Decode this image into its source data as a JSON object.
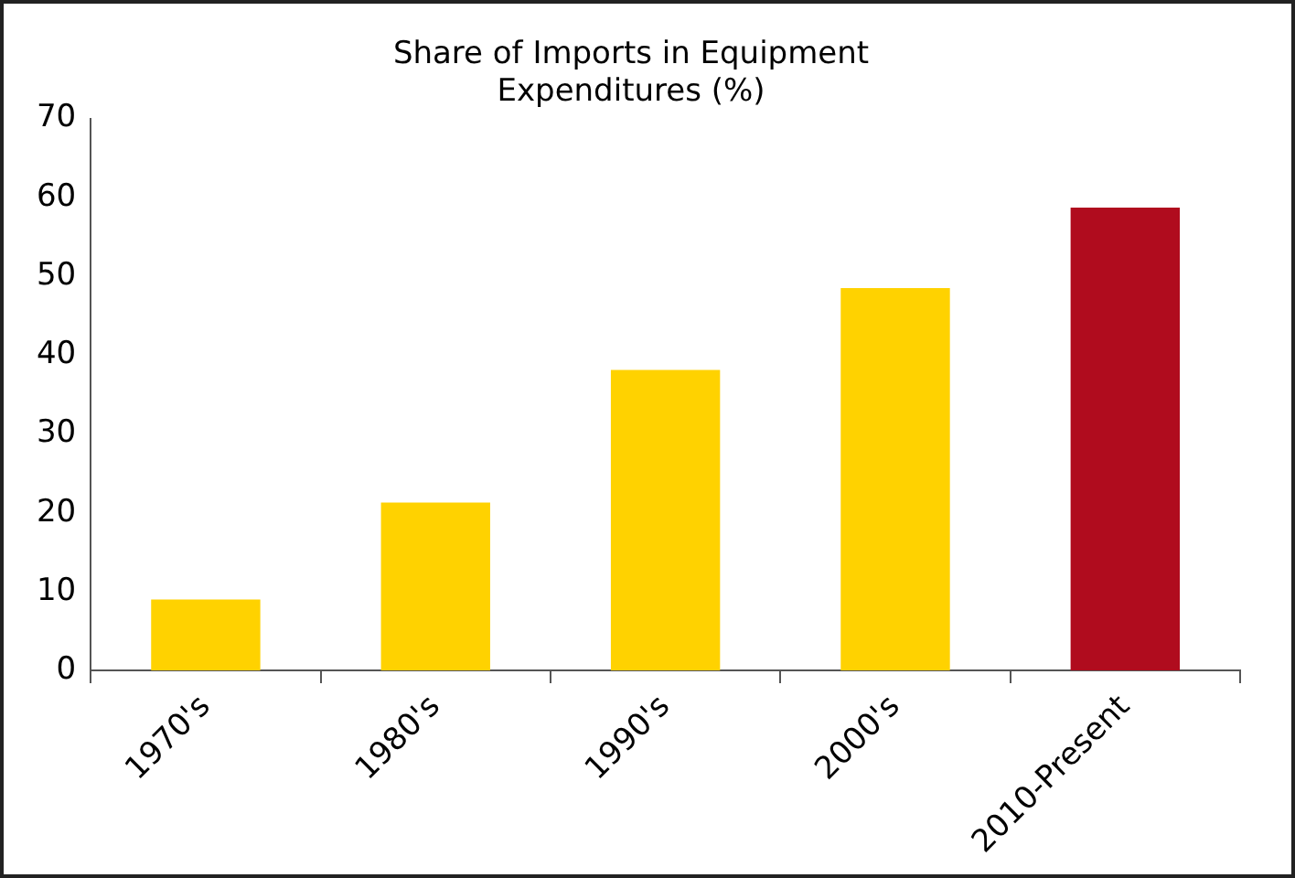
{
  "chart_data": {
    "type": "bar",
    "title": "Share of Imports in Equipment\nExpenditures (%)",
    "categories": [
      "1970's",
      "1980's",
      "1990's",
      "2000's",
      "2010-Present"
    ],
    "values": [
      9,
      21.3,
      38.1,
      48.5,
      58.7
    ],
    "colors": [
      "#ffd200",
      "#ffd200",
      "#ffd200",
      "#ffd200",
      "#b00c1e"
    ],
    "ylim": [
      0,
      70
    ],
    "yticks": [
      0,
      10,
      20,
      30,
      40,
      50,
      60,
      70
    ],
    "grid": false,
    "legend": false
  }
}
